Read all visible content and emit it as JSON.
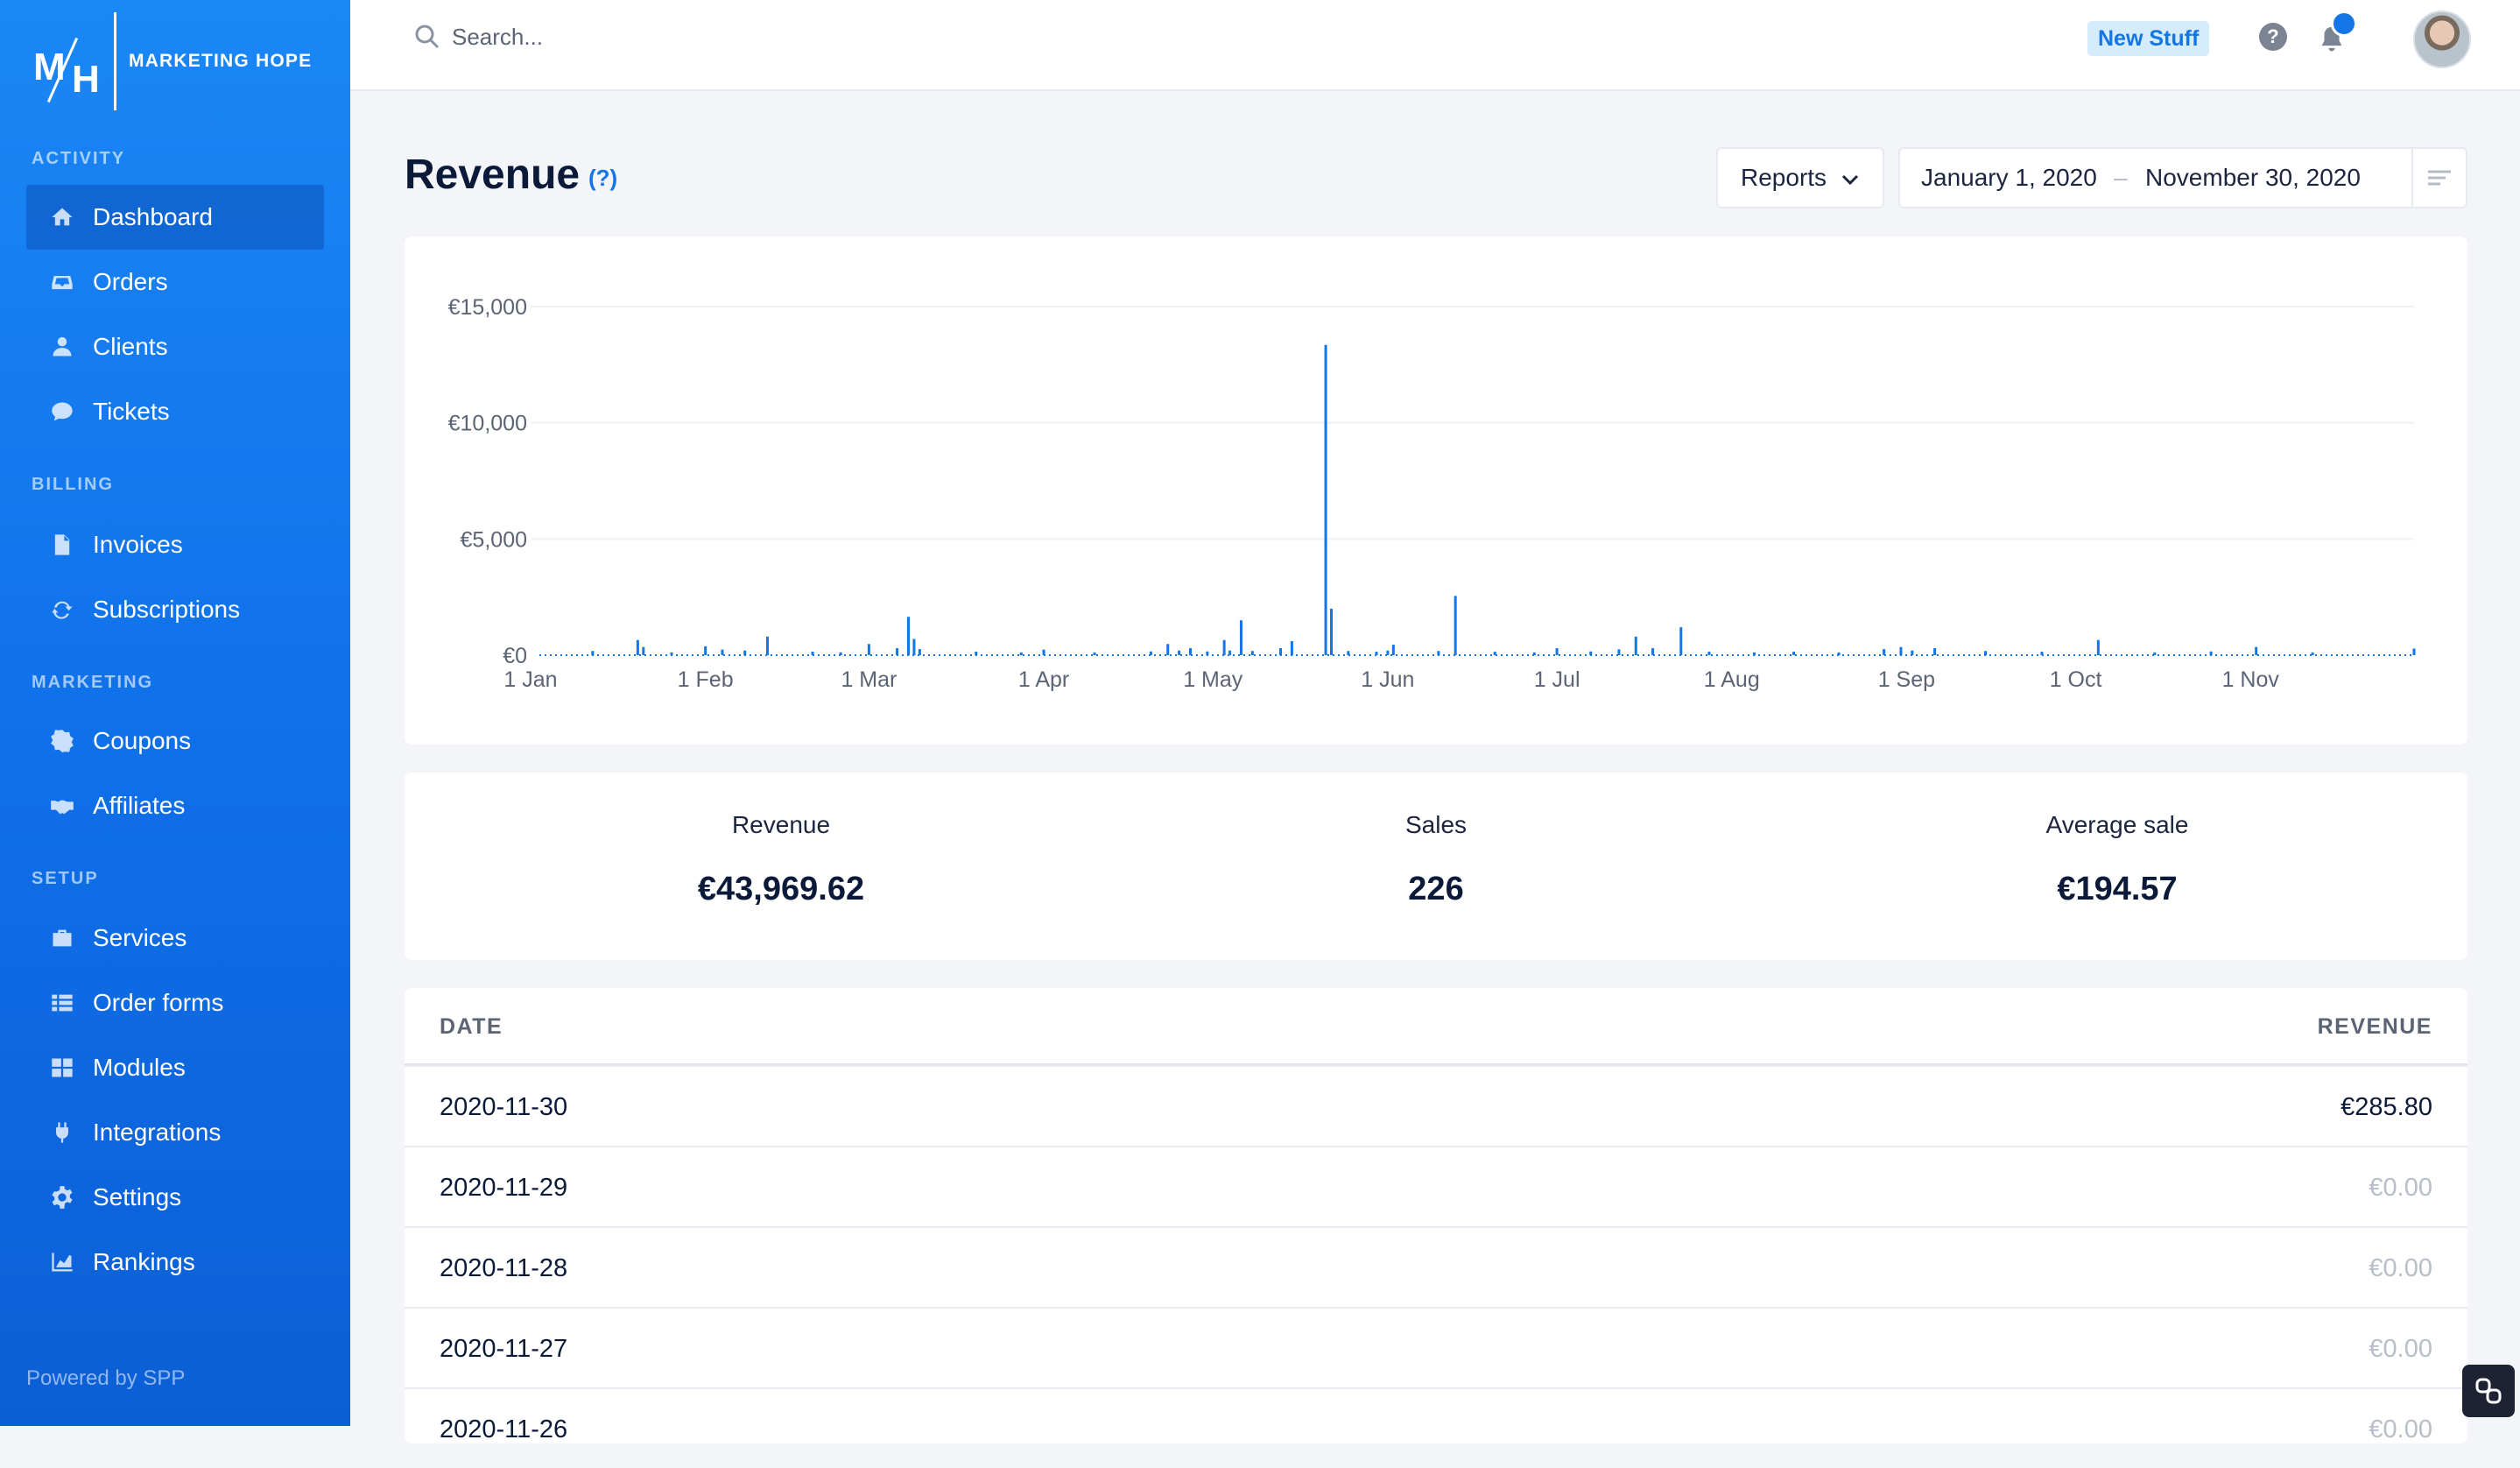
{
  "brand": {
    "logo_text_m": "M",
    "logo_text_h": "H",
    "name": "MARKETING HOPE"
  },
  "nav": {
    "sections": [
      {
        "title": "ACTIVITY",
        "items": [
          {
            "label": "Dashboard",
            "icon": "home-icon",
            "active": true
          },
          {
            "label": "Orders",
            "icon": "inbox-icon"
          },
          {
            "label": "Clients",
            "icon": "user-icon"
          },
          {
            "label": "Tickets",
            "icon": "chat-bubble-icon"
          }
        ]
      },
      {
        "title": "BILLING",
        "items": [
          {
            "label": "Invoices",
            "icon": "document-icon"
          },
          {
            "label": "Subscriptions",
            "icon": "refresh-icon"
          }
        ]
      },
      {
        "title": "MARKETING",
        "items": [
          {
            "label": "Coupons",
            "icon": "badge-percent-icon"
          },
          {
            "label": "Affiliates",
            "icon": "handshake-icon"
          }
        ]
      },
      {
        "title": "SETUP",
        "items": [
          {
            "label": "Services",
            "icon": "briefcase-icon"
          },
          {
            "label": "Order forms",
            "icon": "list-grid-icon"
          },
          {
            "label": "Modules",
            "icon": "grid-icon"
          },
          {
            "label": "Integrations",
            "icon": "plug-icon"
          },
          {
            "label": "Settings",
            "icon": "gear-icon"
          },
          {
            "label": "Rankings",
            "icon": "area-chart-icon"
          }
        ]
      }
    ],
    "powered_by": "Powered by SPP"
  },
  "topbar": {
    "search_placeholder": "Search...",
    "new_stuff_label": "New Stuff",
    "help_glyph": "?"
  },
  "page": {
    "title": "Revenue",
    "help_link": "(?)",
    "reports_label": "Reports",
    "date_from": "January 1, 2020",
    "date_separator": "–",
    "date_to": "November 30, 2020"
  },
  "chart_data": {
    "type": "bar",
    "title": "",
    "xlabel": "",
    "ylabel": "",
    "ylim": [
      0,
      15000
    ],
    "y_ticks": [
      "€0",
      "€5,000",
      "€10,000",
      "€15,000"
    ],
    "x_ticks": [
      "1 Jan",
      "1 Feb",
      "1 Mar",
      "1 Apr",
      "1 May",
      "1 Jun",
      "1 Jul",
      "1 Aug",
      "1 Sep",
      "1 Oct",
      "1 Nov"
    ],
    "x_range": [
      "2020-01-01",
      "2020-11-30"
    ],
    "grid": true,
    "bar_color": "#1476e6",
    "points": [
      {
        "date": "2020-01-12",
        "value": 180
      },
      {
        "date": "2020-01-20",
        "value": 650
      },
      {
        "date": "2020-01-21",
        "value": 350
      },
      {
        "date": "2020-01-26",
        "value": 120
      },
      {
        "date": "2020-02-01",
        "value": 380
      },
      {
        "date": "2020-02-04",
        "value": 240
      },
      {
        "date": "2020-02-08",
        "value": 200
      },
      {
        "date": "2020-02-12",
        "value": 800
      },
      {
        "date": "2020-02-20",
        "value": 150
      },
      {
        "date": "2020-02-25",
        "value": 120
      },
      {
        "date": "2020-03-01",
        "value": 480
      },
      {
        "date": "2020-03-06",
        "value": 300
      },
      {
        "date": "2020-03-08",
        "value": 1650
      },
      {
        "date": "2020-03-09",
        "value": 700
      },
      {
        "date": "2020-03-10",
        "value": 260
      },
      {
        "date": "2020-03-20",
        "value": 150
      },
      {
        "date": "2020-03-28",
        "value": 120
      },
      {
        "date": "2020-04-01",
        "value": 240
      },
      {
        "date": "2020-04-10",
        "value": 120
      },
      {
        "date": "2020-04-20",
        "value": 160
      },
      {
        "date": "2020-04-23",
        "value": 480
      },
      {
        "date": "2020-04-25",
        "value": 200
      },
      {
        "date": "2020-04-27",
        "value": 300
      },
      {
        "date": "2020-04-30",
        "value": 160
      },
      {
        "date": "2020-05-03",
        "value": 650
      },
      {
        "date": "2020-05-04",
        "value": 200
      },
      {
        "date": "2020-05-06",
        "value": 1500
      },
      {
        "date": "2020-05-08",
        "value": 180
      },
      {
        "date": "2020-05-13",
        "value": 300
      },
      {
        "date": "2020-05-15",
        "value": 600
      },
      {
        "date": "2020-05-21",
        "value": 13350
      },
      {
        "date": "2020-05-22",
        "value": 2000
      },
      {
        "date": "2020-05-25",
        "value": 180
      },
      {
        "date": "2020-05-30",
        "value": 150
      },
      {
        "date": "2020-06-01",
        "value": 200
      },
      {
        "date": "2020-06-02",
        "value": 450
      },
      {
        "date": "2020-06-10",
        "value": 180
      },
      {
        "date": "2020-06-13",
        "value": 2550
      },
      {
        "date": "2020-06-20",
        "value": 150
      },
      {
        "date": "2020-06-27",
        "value": 120
      },
      {
        "date": "2020-07-01",
        "value": 300
      },
      {
        "date": "2020-07-07",
        "value": 160
      },
      {
        "date": "2020-07-12",
        "value": 250
      },
      {
        "date": "2020-07-15",
        "value": 800
      },
      {
        "date": "2020-07-18",
        "value": 300
      },
      {
        "date": "2020-07-23",
        "value": 1200
      },
      {
        "date": "2020-07-28",
        "value": 150
      },
      {
        "date": "2020-08-05",
        "value": 120
      },
      {
        "date": "2020-08-12",
        "value": 150
      },
      {
        "date": "2020-08-20",
        "value": 120
      },
      {
        "date": "2020-08-28",
        "value": 260
      },
      {
        "date": "2020-08-31",
        "value": 350
      },
      {
        "date": "2020-09-02",
        "value": 200
      },
      {
        "date": "2020-09-06",
        "value": 300
      },
      {
        "date": "2020-09-15",
        "value": 180
      },
      {
        "date": "2020-09-25",
        "value": 150
      },
      {
        "date": "2020-10-05",
        "value": 650
      },
      {
        "date": "2020-10-15",
        "value": 120
      },
      {
        "date": "2020-10-25",
        "value": 160
      },
      {
        "date": "2020-11-02",
        "value": 350
      },
      {
        "date": "2020-11-12",
        "value": 120
      },
      {
        "date": "2020-11-30",
        "value": 286
      }
    ]
  },
  "stats": [
    {
      "label": "Revenue",
      "value": "€43,969.62"
    },
    {
      "label": "Sales",
      "value": "226"
    },
    {
      "label": "Average sale",
      "value": "€194.57"
    }
  ],
  "table": {
    "headers": {
      "date": "DATE",
      "revenue": "REVENUE"
    },
    "rows": [
      {
        "date": "2020-11-30",
        "revenue": "€285.80",
        "zero": false
      },
      {
        "date": "2020-11-29",
        "revenue": "€0.00",
        "zero": true
      },
      {
        "date": "2020-11-28",
        "revenue": "€0.00",
        "zero": true
      },
      {
        "date": "2020-11-27",
        "revenue": "€0.00",
        "zero": true
      },
      {
        "date": "2020-11-26",
        "revenue": "€0.00",
        "zero": true
      }
    ]
  }
}
